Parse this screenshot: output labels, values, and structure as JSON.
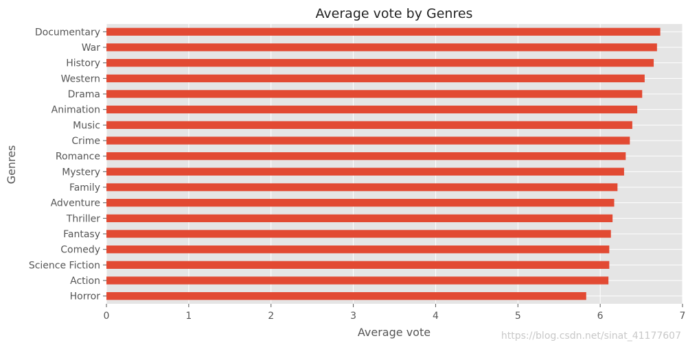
{
  "chart_data": {
    "type": "bar",
    "orientation": "horizontal",
    "title": "Average vote by Genres",
    "xlabel": "Average vote",
    "ylabel": "Genres",
    "xlim": [
      0,
      7
    ],
    "xticks": [
      "0",
      "1",
      "2",
      "3",
      "4",
      "5",
      "6",
      "7"
    ],
    "grid": true,
    "legend": "none",
    "bar_color": "#E24A33",
    "plot_background": "#E5E5E5",
    "categories": [
      "Documentary",
      "War",
      "History",
      "Western",
      "Drama",
      "Animation",
      "Music",
      "Crime",
      "Romance",
      "Mystery",
      "Family",
      "Adventure",
      "Thriller",
      "Fantasy",
      "Comedy",
      "Science Fiction",
      "Action",
      "Horror"
    ],
    "values": [
      6.73,
      6.69,
      6.65,
      6.54,
      6.51,
      6.45,
      6.39,
      6.36,
      6.31,
      6.29,
      6.21,
      6.17,
      6.15,
      6.13,
      6.11,
      6.11,
      6.1,
      5.83
    ]
  },
  "watermark": "https://blog.csdn.net/sinat_41177607"
}
